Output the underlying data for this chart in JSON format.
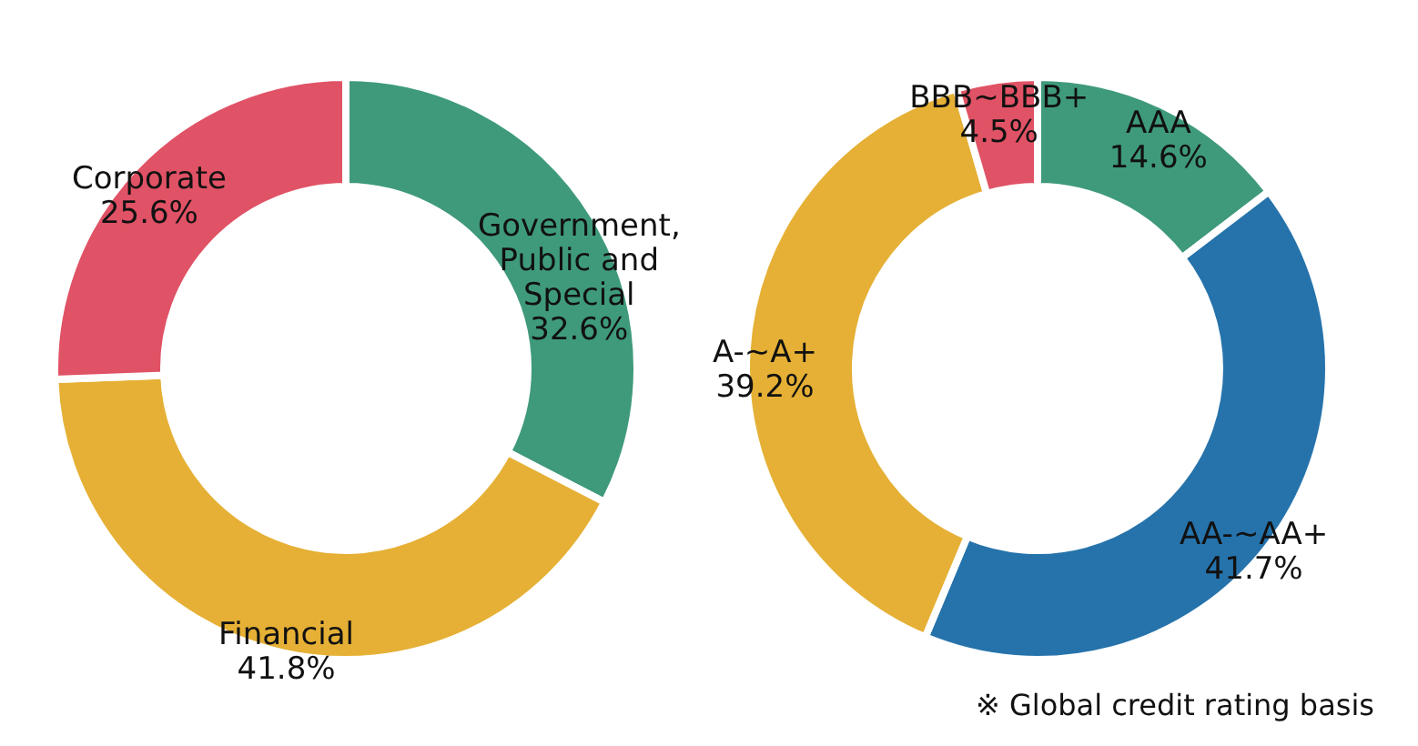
{
  "chart_data": [
    {
      "type": "donut",
      "categories": [
        "Government, Public and Special",
        "Financial",
        "Corporate"
      ],
      "values": [
        32.6,
        41.8,
        25.6
      ],
      "colors": [
        "#3f9a7c",
        "#e5b035",
        "#e05265"
      ],
      "value_labels": [
        "32.6%",
        "41.8%",
        "25.6%"
      ],
      "legend": false
    },
    {
      "type": "donut",
      "categories": [
        "AAA",
        "AA-~AA+",
        "A-~A+",
        "BBB~BBB+"
      ],
      "values": [
        14.6,
        41.7,
        39.2,
        4.5
      ],
      "colors": [
        "#3f9a7c",
        "#2673ab",
        "#e5b035",
        "#e05265"
      ],
      "value_labels": [
        "14.6%",
        "41.7%",
        "39.2%",
        "4.5%"
      ],
      "legend": false,
      "annotations": [
        "※ Global credit rating basis"
      ]
    }
  ]
}
